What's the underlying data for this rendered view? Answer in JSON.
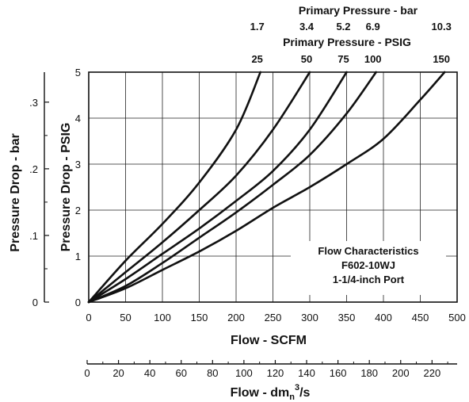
{
  "chart_data": {
    "type": "line",
    "annotation": [
      "Flow Characteristics",
      "F602-10WJ",
      "1-1/4-inch Port"
    ],
    "x_axis": {
      "label": "Flow - SCFM",
      "range": [
        0,
        500
      ],
      "ticks": [
        "0",
        "50",
        "100",
        "150",
        "200",
        "250",
        "300",
        "350",
        "400",
        "450",
        "500"
      ]
    },
    "x2_axis": {
      "label_main": "Flow - dm",
      "label_sub": "n",
      "label_sup": "3",
      "label_tail": "/s",
      "range": [
        0,
        236
      ],
      "ticks": [
        {
          "v": 0,
          "label": "0"
        },
        {
          "v": 20,
          "label": "20"
        },
        {
          "v": 40,
          "label": "40"
        },
        {
          "v": 60,
          "label": "60"
        },
        {
          "v": 80,
          "label": "80"
        },
        {
          "v": 100,
          "label": "100"
        },
        {
          "v": 120,
          "label": "120"
        },
        {
          "v": 140,
          "label": "140"
        },
        {
          "v": 160,
          "label": "160"
        },
        {
          "v": 180,
          "label": "180"
        },
        {
          "v": 200,
          "label": "200"
        },
        {
          "v": 220,
          "label": "220"
        }
      ]
    },
    "y_axis": {
      "label": "Pressure Drop - PSIG",
      "range": [
        0,
        5
      ],
      "ticks": [
        "0",
        "1",
        "2",
        "3",
        "4",
        "5"
      ]
    },
    "y2_axis": {
      "label": "Pressure Drop - bar",
      "range": [
        0,
        0.345
      ],
      "ticks": [
        {
          "v": 0,
          "label": "0"
        },
        {
          "v": 0.1,
          "label": ".1"
        },
        {
          "v": 0.2,
          "label": ".2"
        },
        {
          "v": 0.3,
          "label": ".3"
        }
      ]
    },
    "top_bar_axis": {
      "label": "Primary Pressure - bar",
      "values": [
        "1.7",
        "3.4",
        "5.2",
        "6.9",
        "10.3"
      ]
    },
    "top_psig_axis": {
      "label": "Primary Pressure - PSIG",
      "values": [
        "25",
        "50",
        "75",
        "100",
        "150"
      ]
    },
    "series": [
      {
        "primary_psig": 25,
        "x": [
          0,
          50,
          100,
          150,
          200,
          233
        ],
        "y": [
          0,
          0.9,
          1.7,
          2.6,
          3.75,
          5.0
        ]
      },
      {
        "primary_psig": 50,
        "x": [
          0,
          50,
          100,
          150,
          200,
          250,
          300
        ],
        "y": [
          0,
          0.65,
          1.3,
          2.0,
          2.75,
          3.75,
          5.0
        ]
      },
      {
        "primary_psig": 75,
        "x": [
          0,
          50,
          100,
          150,
          200,
          250,
          300,
          350
        ],
        "y": [
          0,
          0.5,
          1.05,
          1.6,
          2.2,
          2.85,
          3.75,
          5.0
        ]
      },
      {
        "primary_psig": 100,
        "x": [
          0,
          50,
          100,
          150,
          200,
          250,
          300,
          350,
          390
        ],
        "y": [
          0,
          0.35,
          0.85,
          1.4,
          1.95,
          2.55,
          3.2,
          4.1,
          5.0
        ]
      },
      {
        "primary_psig": 150,
        "x": [
          0,
          50,
          100,
          150,
          200,
          250,
          300,
          350,
          400,
          450,
          483
        ],
        "y": [
          0,
          0.3,
          0.7,
          1.1,
          1.55,
          2.05,
          2.5,
          3.0,
          3.55,
          4.4,
          5.0
        ]
      }
    ]
  }
}
